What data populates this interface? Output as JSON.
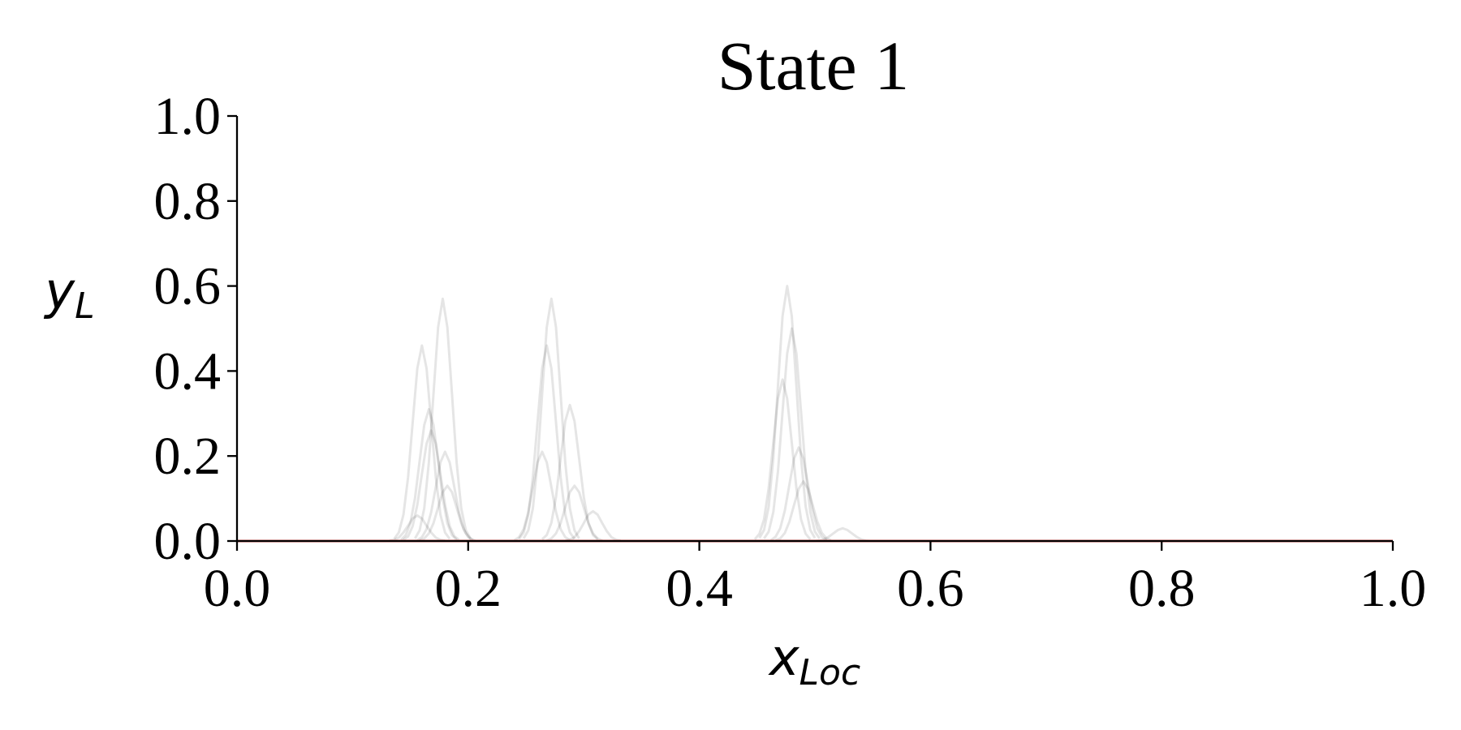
{
  "chart_data": {
    "type": "line",
    "title": "State 1",
    "xlabel": {
      "text": "x",
      "subscript": "Loc"
    },
    "ylabel": {
      "text": "y",
      "subscript": "L"
    },
    "xlim": [
      0,
      1
    ],
    "ylim": [
      0,
      1
    ],
    "xticks": [
      {
        "value": 0,
        "label": "0.0"
      },
      0.2,
      0.4,
      0.6,
      0.8,
      {
        "value": 1,
        "label": "1.0"
      }
    ],
    "yticks": [
      {
        "value": 0,
        "label": "0.0"
      },
      0.2,
      0.4,
      0.6,
      0.8,
      {
        "value": 1,
        "label": "1.0"
      }
    ],
    "grid": false,
    "line_alpha": 0.1,
    "series": [
      {
        "color": "#000000",
        "x": [
          0.136,
          0.14,
          0.144,
          0.148,
          0.152,
          0.156,
          0.16,
          0.164,
          0.168,
          0.172,
          0.176,
          0.18,
          0.184
        ],
        "values": [
          0.005,
          0.02,
          0.062,
          0.15,
          0.279,
          0.406,
          0.46,
          0.406,
          0.279,
          0.15,
          0.062,
          0.02,
          0.005
        ]
      },
      {
        "color": "#000000",
        "x": [
          0.154,
          0.158,
          0.162,
          0.166,
          0.17,
          0.174,
          0.178,
          0.182,
          0.186,
          0.19,
          0.194,
          0.198,
          0.202
        ],
        "values": [
          0.006,
          0.025,
          0.077,
          0.185,
          0.346,
          0.503,
          0.57,
          0.503,
          0.346,
          0.185,
          0.077,
          0.025,
          0.006
        ]
      },
      {
        "color": "#000000",
        "x": [
          0.142,
          0.146,
          0.15,
          0.154,
          0.158,
          0.162,
          0.166,
          0.17,
          0.174,
          0.178,
          0.182,
          0.186,
          0.19
        ],
        "values": [
          0.003,
          0.014,
          0.042,
          0.101,
          0.188,
          0.273,
          0.31,
          0.273,
          0.188,
          0.101,
          0.042,
          0.014,
          0.003
        ]
      },
      {
        "color": "#000000",
        "x": [
          0.144,
          0.148,
          0.152,
          0.156,
          0.16,
          0.164,
          0.168,
          0.172,
          0.176,
          0.18,
          0.184,
          0.188,
          0.192
        ],
        "values": [
          0.003,
          0.011,
          0.035,
          0.085,
          0.158,
          0.229,
          0.26,
          0.229,
          0.158,
          0.085,
          0.035,
          0.011,
          0.003
        ]
      },
      {
        "color": "#000000",
        "x": [
          0.156,
          0.16,
          0.164,
          0.168,
          0.172,
          0.176,
          0.18,
          0.184,
          0.188,
          0.192,
          0.196,
          0.2,
          0.204
        ],
        "values": [
          0.002,
          0.009,
          0.028,
          0.068,
          0.127,
          0.185,
          0.21,
          0.185,
          0.127,
          0.068,
          0.028,
          0.009,
          0.002
        ]
      },
      {
        "color": "#000000",
        "x": [
          0.158,
          0.162,
          0.166,
          0.17,
          0.174,
          0.178,
          0.182,
          0.186,
          0.19,
          0.194,
          0.198,
          0.202,
          0.206
        ],
        "values": [
          0.001,
          0.006,
          0.018,
          0.042,
          0.079,
          0.115,
          0.13,
          0.115,
          0.079,
          0.042,
          0.018,
          0.006,
          0.001
        ]
      },
      {
        "color": "#000000",
        "x": [
          0.132,
          0.136,
          0.14,
          0.144,
          0.148,
          0.152,
          0.156,
          0.16,
          0.164,
          0.168,
          0.172,
          0.176,
          0.18
        ],
        "values": [
          0.001,
          0.003,
          0.008,
          0.02,
          0.036,
          0.053,
          0.06,
          0.053,
          0.036,
          0.02,
          0.008,
          0.003,
          0.001
        ]
      },
      {
        "color": "#000000",
        "x": [
          0.248,
          0.252,
          0.256,
          0.26,
          0.264,
          0.268,
          0.272,
          0.276,
          0.28,
          0.284,
          0.288,
          0.292,
          0.296
        ],
        "values": [
          0.006,
          0.025,
          0.077,
          0.185,
          0.346,
          0.503,
          0.57,
          0.503,
          0.346,
          0.185,
          0.077,
          0.025,
          0.006
        ]
      },
      {
        "color": "#000000",
        "x": [
          0.244,
          0.248,
          0.252,
          0.256,
          0.26,
          0.264,
          0.268,
          0.272,
          0.276,
          0.28,
          0.284,
          0.288,
          0.292
        ],
        "values": [
          0.005,
          0.02,
          0.062,
          0.15,
          0.279,
          0.406,
          0.46,
          0.406,
          0.279,
          0.15,
          0.062,
          0.02,
          0.005
        ]
      },
      {
        "color": "#000000",
        "x": [
          0.24,
          0.244,
          0.248,
          0.252,
          0.256,
          0.26,
          0.264,
          0.268,
          0.272,
          0.276,
          0.28,
          0.284,
          0.288
        ],
        "values": [
          0.002,
          0.009,
          0.028,
          0.068,
          0.127,
          0.185,
          0.21,
          0.185,
          0.127,
          0.068,
          0.028,
          0.009,
          0.002
        ]
      },
      {
        "color": "#000000",
        "x": [
          0.264,
          0.268,
          0.272,
          0.276,
          0.28,
          0.284,
          0.288,
          0.292,
          0.296,
          0.3,
          0.304,
          0.308,
          0.312
        ],
        "values": [
          0.004,
          0.014,
          0.043,
          0.104,
          0.194,
          0.282,
          0.32,
          0.282,
          0.194,
          0.104,
          0.043,
          0.014,
          0.004
        ]
      },
      {
        "color": "#000000",
        "x": [
          0.268,
          0.272,
          0.276,
          0.28,
          0.284,
          0.288,
          0.292,
          0.296,
          0.3,
          0.304,
          0.308,
          0.312,
          0.316
        ],
        "values": [
          0.001,
          0.006,
          0.018,
          0.042,
          0.079,
          0.115,
          0.13,
          0.115,
          0.079,
          0.042,
          0.018,
          0.006,
          0.001
        ]
      },
      {
        "color": "#000000",
        "x": [
          0.284,
          0.288,
          0.292,
          0.296,
          0.3,
          0.304,
          0.308,
          0.312,
          0.316,
          0.32,
          0.324,
          0.328,
          0.332
        ],
        "values": [
          0.001,
          0.003,
          0.009,
          0.023,
          0.042,
          0.062,
          0.07,
          0.062,
          0.042,
          0.023,
          0.009,
          0.003,
          0.001
        ]
      },
      {
        "color": "#000000",
        "x": [
          0.452,
          0.456,
          0.46,
          0.464,
          0.468,
          0.472,
          0.476,
          0.48,
          0.484,
          0.488,
          0.492,
          0.496,
          0.5
        ],
        "values": [
          0.007,
          0.026,
          0.081,
          0.195,
          0.364,
          0.529,
          0.6,
          0.529,
          0.364,
          0.195,
          0.081,
          0.026,
          0.007
        ]
      },
      {
        "color": "#000000",
        "x": [
          0.456,
          0.46,
          0.464,
          0.468,
          0.472,
          0.476,
          0.48,
          0.484,
          0.488,
          0.492,
          0.496,
          0.5,
          0.504
        ],
        "values": [
          0.006,
          0.022,
          0.068,
          0.163,
          0.304,
          0.441,
          0.5,
          0.441,
          0.304,
          0.163,
          0.068,
          0.022,
          0.006
        ]
      },
      {
        "color": "#000000",
        "x": [
          0.448,
          0.452,
          0.456,
          0.46,
          0.464,
          0.468,
          0.472,
          0.476,
          0.48,
          0.484,
          0.488,
          0.492,
          0.496
        ],
        "values": [
          0.004,
          0.017,
          0.051,
          0.124,
          0.231,
          0.335,
          0.38,
          0.335,
          0.231,
          0.124,
          0.051,
          0.017,
          0.004
        ]
      },
      {
        "color": "#000000",
        "x": [
          0.462,
          0.466,
          0.47,
          0.474,
          0.478,
          0.482,
          0.486,
          0.49,
          0.494,
          0.498,
          0.502,
          0.506,
          0.51
        ],
        "values": [
          0.002,
          0.01,
          0.03,
          0.072,
          0.134,
          0.194,
          0.22,
          0.194,
          0.134,
          0.072,
          0.03,
          0.01,
          0.002
        ]
      },
      {
        "color": "#000000",
        "x": [
          0.466,
          0.47,
          0.474,
          0.478,
          0.482,
          0.486,
          0.49,
          0.494,
          0.498,
          0.502,
          0.506,
          0.51,
          0.514
        ],
        "values": [
          0.002,
          0.006,
          0.019,
          0.046,
          0.085,
          0.123,
          0.14,
          0.123,
          0.085,
          0.046,
          0.019,
          0.006,
          0.002
        ]
      },
      {
        "color": "#000000",
        "x": [
          0.5,
          0.504,
          0.508,
          0.512,
          0.516,
          0.52,
          0.524,
          0.528,
          0.532,
          0.536,
          0.54,
          0.544,
          0.548
        ],
        "values": [
          0,
          0.001,
          0.004,
          0.01,
          0.018,
          0.026,
          0.03,
          0.026,
          0.018,
          0.01,
          0.004,
          0.001,
          0
        ]
      },
      {
        "color": "#d9534f",
        "opaque": true,
        "x": [
          0,
          1
        ],
        "values": [
          0,
          0
        ]
      }
    ]
  }
}
